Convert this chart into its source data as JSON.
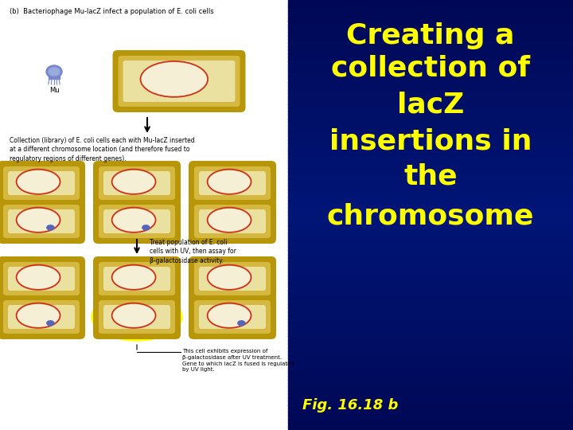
{
  "title_lines": [
    "Creating a",
    "collection of",
    "lacZ",
    "insertions in",
    "the",
    "chromosome"
  ],
  "fig_label": "Fig. 16.18 b",
  "title_color": "#FFFF00",
  "fig_label_color": "#FFFF00",
  "title_fontsize": 26,
  "fig_label_fontsize": 13,
  "left_bg": "#FFFFFF",
  "right_bg_color": "#1133AA",
  "left_panel_header": "(b)  Bacteriophage Mu-lacZ infect a population of E. coli cells",
  "collection_text": "Collection (library) of E. coli cells each with Mu-lacZ inserted\nat a different chromosome location (and therefore fused to\nregulatory regions of different genes).",
  "treat_text": "Treat population of E. coli\ncells with UV, then assay for\nβ-galactosidase activity.",
  "bottom_text": "This cell exhibits expression of\nβ-galactosidase after UV treatment.\nGene to which lacZ is fused is regulated\nby UV light.",
  "mu_label": "Mu",
  "cell_outer_color": "#B8960A",
  "cell_mid_color": "#D4B840",
  "cell_inner_color": "#EAE0A0",
  "cell_nucleus_color": "#F5F0D5",
  "cell_red_line": "#CC3322",
  "cell_blue_mark": "#5566BB",
  "yellow_highlight": "#FFFF00",
  "phage_color": "#7788CC",
  "arrow_color": "#000000",
  "text_color": "#000000",
  "small_fontsize": 6,
  "tiny_fontsize": 5.5
}
